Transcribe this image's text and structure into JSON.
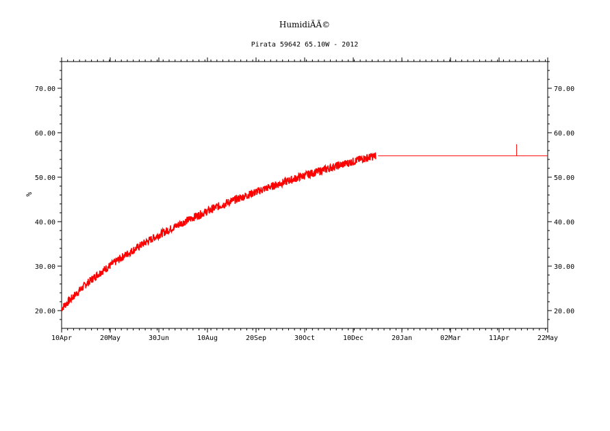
{
  "chart_data": {
    "type": "line",
    "title": "HumidiÃÃ©",
    "subtitle": "Pirata 59642 65.10W - 2012",
    "ylabel": "%",
    "xlabel": "",
    "x_tick_labels": [
      "10Apr",
      "20May",
      "30Jun",
      "10Aug",
      "20Sep",
      "30Oct",
      "10Dec",
      "20Jan",
      "02Mar",
      "11Apr",
      "22May"
    ],
    "y_tick_labels": [
      "20.00",
      "30.00",
      "40.00",
      "50.00",
      "60.00",
      "70.00"
    ],
    "y_ticks": [
      20,
      30,
      40,
      50,
      60,
      70
    ],
    "ylim": [
      16,
      76
    ],
    "xlim_days": [
      0,
      407
    ],
    "grid": false,
    "legend": "none",
    "color": "#ff0000",
    "series": [
      {
        "x_days": [
          0,
          10,
          20,
          30,
          40,
          50,
          60,
          70,
          80,
          90,
          100,
          110,
          120,
          130,
          140,
          150,
          160,
          170,
          180,
          190,
          200,
          210,
          220,
          230,
          240,
          250,
          263
        ],
        "values": [
          20.5,
          23.2,
          25.8,
          28.1,
          30.0,
          31.9,
          33.6,
          35.3,
          36.8,
          38.2,
          39.6,
          40.9,
          42.1,
          43.3,
          44.4,
          45.4,
          46.4,
          47.4,
          48.3,
          49.2,
          50.1,
          50.9,
          51.7,
          52.5,
          53.2,
          54.0,
          54.8
        ],
        "noise": 0.9
      },
      {
        "x_days": [
          265,
          381,
          381,
          381,
          407
        ],
        "values": [
          54.8,
          54.8,
          57.4,
          54.8,
          54.8
        ]
      }
    ]
  }
}
